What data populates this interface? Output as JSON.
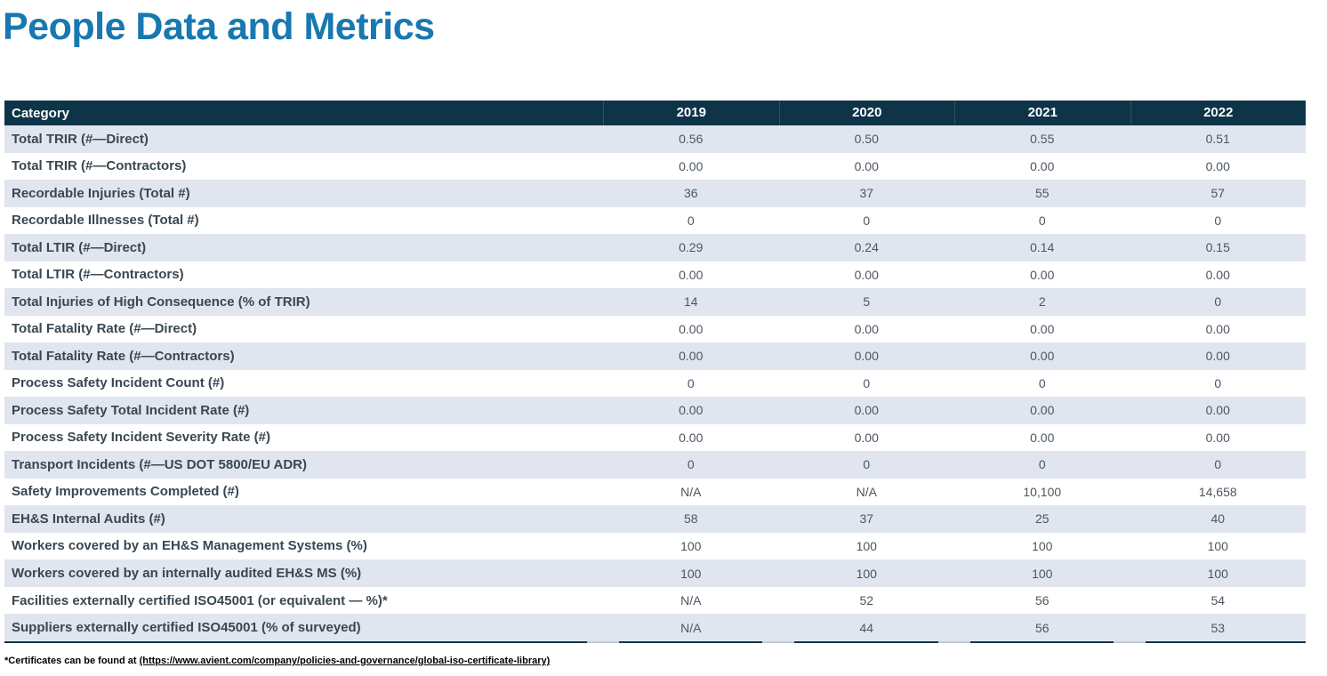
{
  "page": {
    "title": "People Data and Metrics"
  },
  "colors": {
    "title_blue": "#1878b0",
    "header_bg": "#0d3547",
    "row_alt_bg": "#e1e5ef",
    "category_text": "#3a4750",
    "value_text": "#4c5660"
  },
  "table": {
    "columns": [
      "Category",
      "2019",
      "2020",
      "2021",
      "2022"
    ],
    "rows": [
      {
        "category": "Total TRIR (#—Direct)",
        "values": [
          "0.56",
          "0.50",
          "0.55",
          "0.51"
        ]
      },
      {
        "category": "Total TRIR (#—Contractors)",
        "values": [
          "0.00",
          "0.00",
          "0.00",
          "0.00"
        ]
      },
      {
        "category": "Recordable Injuries (Total #)",
        "values": [
          "36",
          "37",
          "55",
          "57"
        ]
      },
      {
        "category": "Recordable Illnesses (Total #)",
        "values": [
          "0",
          "0",
          "0",
          "0"
        ]
      },
      {
        "category": "Total LTIR (#—Direct)",
        "values": [
          "0.29",
          "0.24",
          "0.14",
          "0.15"
        ]
      },
      {
        "category": "Total LTIR (#—Contractors)",
        "values": [
          "0.00",
          "0.00",
          "0.00",
          "0.00"
        ]
      },
      {
        "category": "Total Injuries of High Consequence (% of TRIR)",
        "values": [
          "14",
          "5",
          "2",
          "0"
        ]
      },
      {
        "category": "Total Fatality Rate (#—Direct)",
        "values": [
          "0.00",
          "0.00",
          "0.00",
          "0.00"
        ]
      },
      {
        "category": "Total Fatality Rate (#—Contractors)",
        "values": [
          "0.00",
          "0.00",
          "0.00",
          "0.00"
        ]
      },
      {
        "category": "Process Safety Incident Count (#)",
        "values": [
          "0",
          "0",
          "0",
          "0"
        ]
      },
      {
        "category": "Process Safety Total Incident Rate (#)",
        "values": [
          "0.00",
          "0.00",
          "0.00",
          "0.00"
        ]
      },
      {
        "category": "Process Safety Incident Severity Rate (#)",
        "values": [
          "0.00",
          "0.00",
          "0.00",
          "0.00"
        ]
      },
      {
        "category": "Transport Incidents (#—US DOT 5800/EU ADR)",
        "values": [
          "0",
          "0",
          "0",
          "0"
        ]
      },
      {
        "category": "Safety Improvements Completed (#)",
        "values": [
          "N/A",
          "N/A",
          "10,100",
          "14,658"
        ]
      },
      {
        "category": "EH&S Internal Audits (#)",
        "values": [
          "58",
          "37",
          "25",
          "40"
        ]
      },
      {
        "category": "Workers covered by an EH&S Management Systems (%)",
        "values": [
          "100",
          "100",
          "100",
          "100"
        ]
      },
      {
        "category": "Workers covered by an internally audited EH&S MS (%)",
        "values": [
          "100",
          "100",
          "100",
          "100"
        ]
      },
      {
        "category": "Facilities externally certified ISO45001 (or equivalent — %)*",
        "values": [
          "N/A",
          "52",
          "56",
          "54"
        ]
      },
      {
        "category": "Suppliers externally certified ISO45001 (% of surveyed)",
        "values": [
          "N/A",
          "44",
          "56",
          "53"
        ]
      }
    ]
  },
  "footnote": {
    "prefix": "*Certificates can be found at ",
    "link_text": "(https://www.avient.com/company/policies-and-governance/global-iso-certificate-library)"
  }
}
